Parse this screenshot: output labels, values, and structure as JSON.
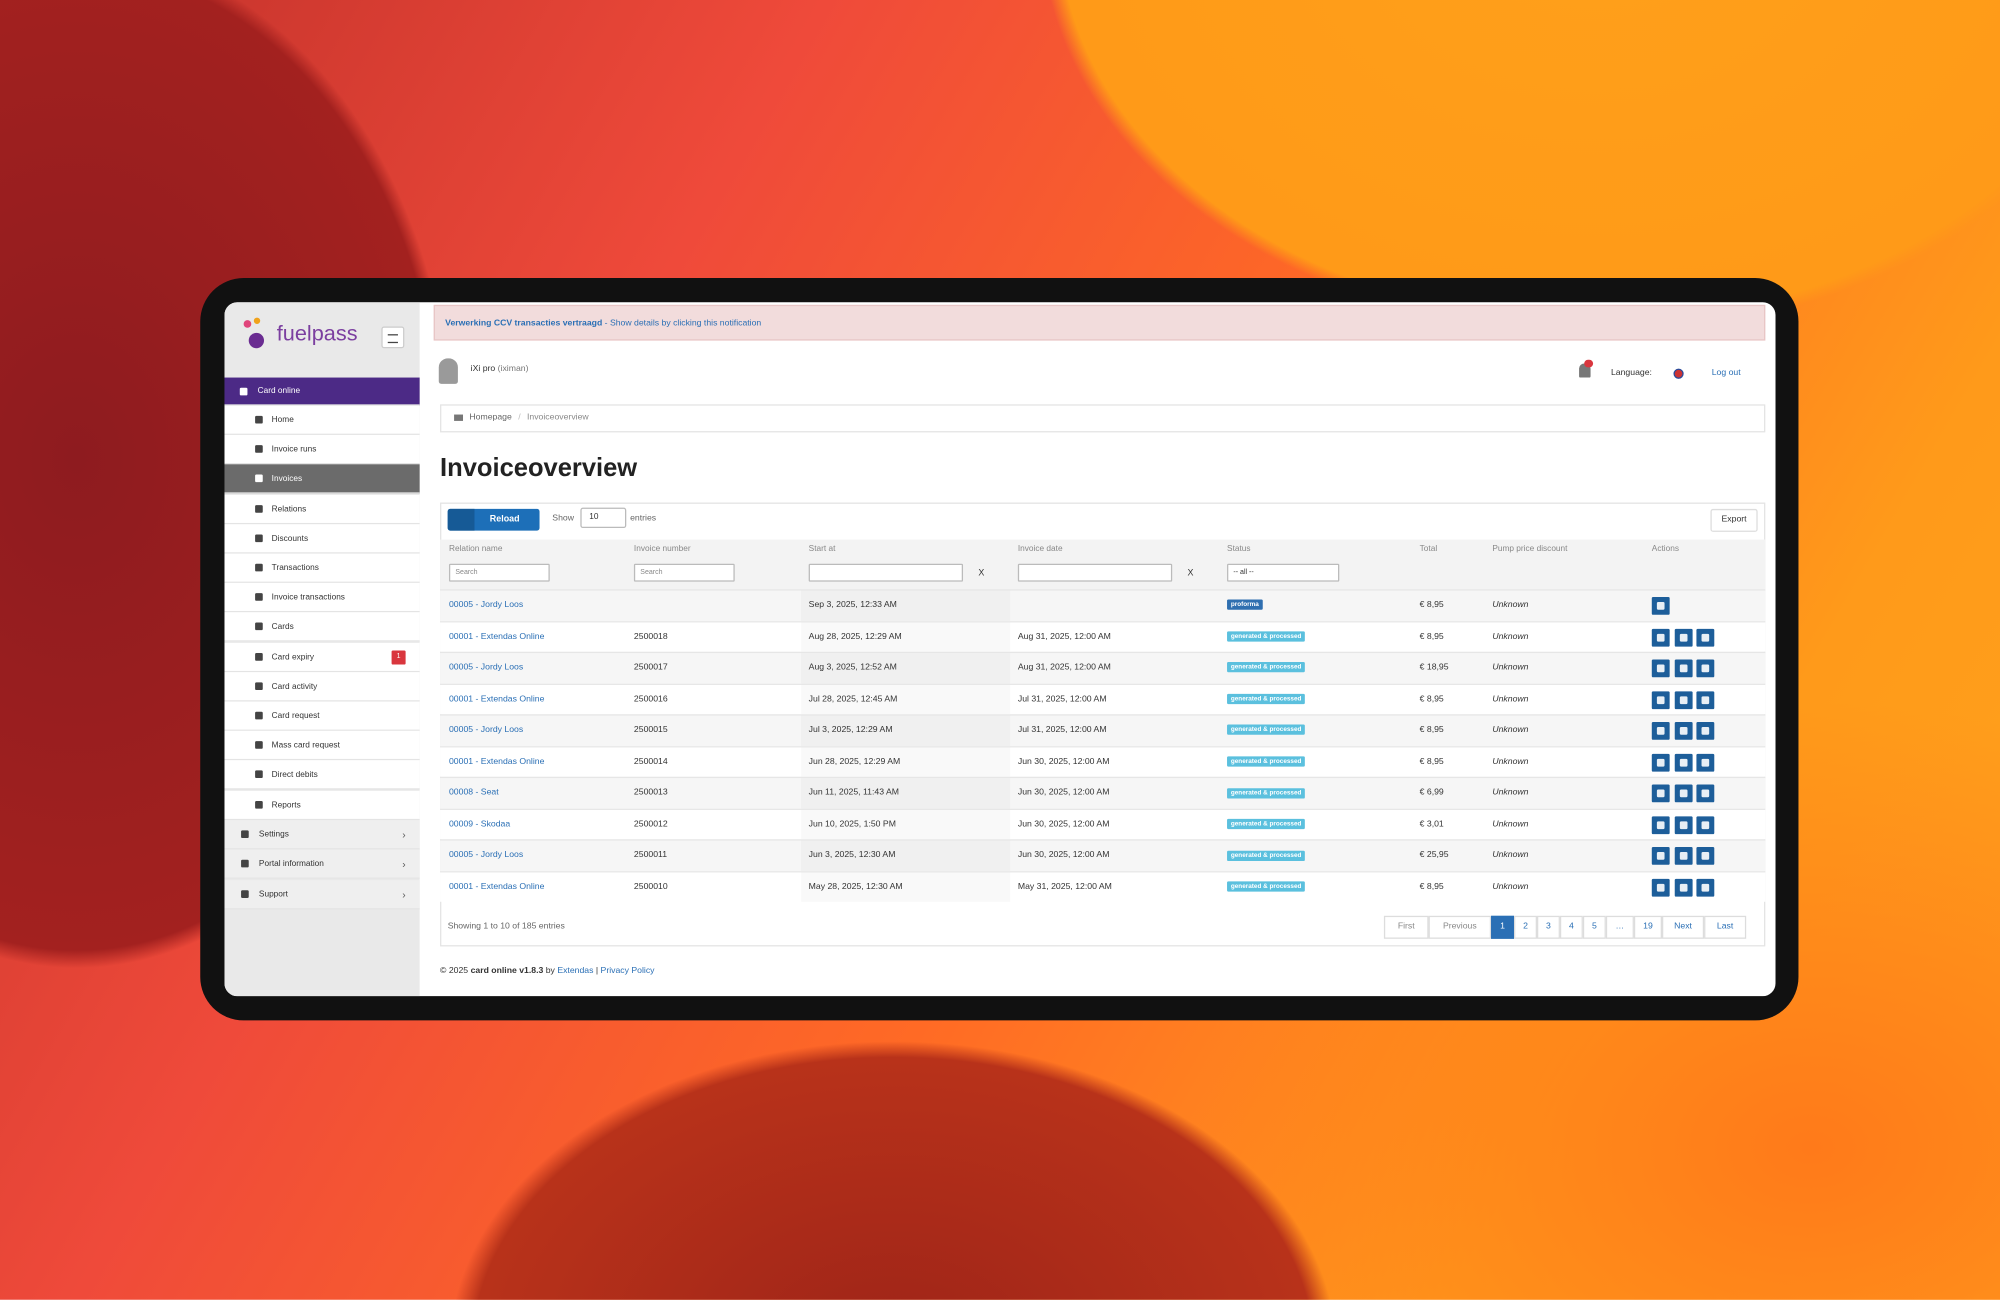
{
  "logo": "fuelpass",
  "notification": {
    "title": "Verwerking CCV transacties vertraagd",
    "text": " - Show details by clicking this notification"
  },
  "user": {
    "name": "iXi pro",
    "login": "(iximan)"
  },
  "language_label": "Language:",
  "logout": "Log out",
  "breadcrumb": [
    "Homepage",
    "Invoiceoverview"
  ],
  "title": "Invoiceoverview",
  "sidebar": {
    "section": "Card online",
    "items": [
      "Home",
      "Invoice runs",
      "Invoices",
      "Relations",
      "Discounts",
      "Transactions",
      "Invoice transactions",
      "Cards",
      "Card expiry",
      "Card activity",
      "Card request",
      "Mass card request",
      "Direct debits",
      "Reports"
    ],
    "active": 2,
    "badge_item": 8,
    "badge": 1,
    "bottom": [
      "Settings",
      "Portal information",
      "Support"
    ]
  },
  "toolbar": {
    "reload": "Reload",
    "show": "Show",
    "page_size": "10",
    "entries": "entries",
    "export": "Export"
  },
  "table": {
    "columns": [
      "Relation name",
      "Invoice number",
      "Start at",
      "Invoice date",
      "Status",
      "Total",
      "Pump price discount",
      "Actions"
    ],
    "search_placeholder": "Search",
    "clear": "X",
    "status_filter": "-- all --",
    "rows": [
      {
        "relation": "00005 - Jordy Loos",
        "number": null,
        "start": "Sep 3, 2025, 12:33 AM",
        "date": null,
        "status": "proforma",
        "status_color": "#2f6fb0",
        "total": "€ 8,95",
        "discount": "Unknown"
      },
      {
        "relation": "00001 - Extendas Online",
        "number": "2500018",
        "start": "Aug 28, 2025, 12:29 AM",
        "date": "Aug 31, 2025, 12:00 AM",
        "status": "generated & processed",
        "status_color": "#5bc0de",
        "total": "€ 8,95",
        "discount": "Unknown"
      },
      {
        "relation": "00005 - Jordy Loos",
        "number": "2500017",
        "start": "Aug 3, 2025, 12:52 AM",
        "date": "Aug 31, 2025, 12:00 AM",
        "status": "generated & processed",
        "status_color": "#5bc0de",
        "total": "€ 18,95",
        "discount": "Unknown"
      },
      {
        "relation": "00001 - Extendas Online",
        "number": "2500016",
        "start": "Jul 28, 2025, 12:45 AM",
        "date": "Jul 31, 2025, 12:00 AM",
        "status": "generated & processed",
        "status_color": "#5bc0de",
        "total": "€ 8,95",
        "discount": "Unknown"
      },
      {
        "relation": "00005 - Jordy Loos",
        "number": "2500015",
        "start": "Jul 3, 2025, 12:29 AM",
        "date": "Jul 31, 2025, 12:00 AM",
        "status": "generated & processed",
        "status_color": "#5bc0de",
        "total": "€ 8,95",
        "discount": "Unknown"
      },
      {
        "relation": "00001 - Extendas Online",
        "number": "2500014",
        "start": "Jun 28, 2025, 12:29 AM",
        "date": "Jun 30, 2025, 12:00 AM",
        "status": "generated & processed",
        "status_color": "#5bc0de",
        "total": "€ 8,95",
        "discount": "Unknown"
      },
      {
        "relation": "00008 - Seat",
        "number": "2500013",
        "start": "Jun 11, 2025, 11:43 AM",
        "date": "Jun 30, 2025, 12:00 AM",
        "status": "generated & processed",
        "status_color": "#5bc0de",
        "total": "€ 6,99",
        "discount": "Unknown"
      },
      {
        "relation": "00009 - Skodaa",
        "number": "2500012",
        "start": "Jun 10, 2025, 1:50 PM",
        "date": "Jun 30, 2025, 12:00 AM",
        "status": "generated & processed",
        "status_color": "#5bc0de",
        "total": "€ 3,01",
        "discount": "Unknown"
      },
      {
        "relation": "00005 - Jordy Loos",
        "number": "2500011",
        "start": "Jun 3, 2025, 12:30 AM",
        "date": "Jun 30, 2025, 12:00 AM",
        "status": "generated & processed",
        "status_color": "#5bc0de",
        "total": "€ 25,95",
        "discount": "Unknown"
      },
      {
        "relation": "00001 - Extendas Online",
        "number": "2500010",
        "start": "May 28, 2025, 12:30 AM",
        "date": "May 31, 2025, 12:00 AM",
        "status": "generated & processed",
        "status_color": "#5bc0de",
        "total": "€ 8,95",
        "discount": "Unknown"
      }
    ]
  },
  "showing": "Showing 1 to 10 of 185 entries",
  "pagination": [
    "First",
    "Previous",
    "1",
    "2",
    "3",
    "4",
    "5",
    "…",
    "19",
    "Next",
    "Last"
  ],
  "pagination_current": 2,
  "footer": {
    "copyright": "© 2025",
    "product": "card online v1.8.3",
    "by": "by",
    "company": "Extendas",
    "separator": "|",
    "privacy": "Privacy Policy"
  }
}
